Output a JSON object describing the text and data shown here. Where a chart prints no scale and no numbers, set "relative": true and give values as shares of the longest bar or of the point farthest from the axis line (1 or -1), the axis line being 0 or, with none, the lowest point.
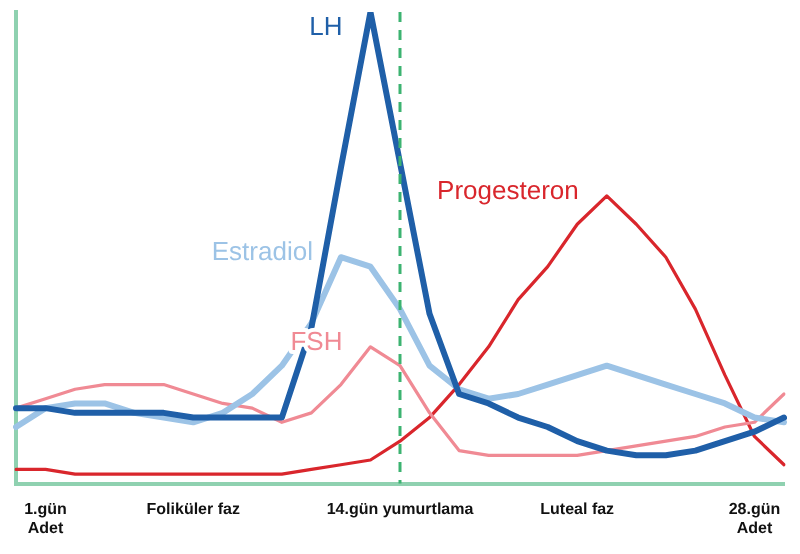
{
  "chart_data": {
    "type": "line",
    "relative": true,
    "grid": false,
    "legend": false,
    "marker": "none",
    "line_style": "solid",
    "categories": [
      null,
      "1.gün\nAdet",
      null,
      null,
      null,
      null,
      "Foliküler faz",
      null,
      null,
      null,
      null,
      null,
      null,
      "14.gün yumurtlama",
      null,
      null,
      null,
      null,
      null,
      "Luteal faz",
      null,
      null,
      null,
      null,
      null,
      "28.gün\nAdet",
      null
    ],
    "series": [
      {
        "name": "LH",
        "color": "#1f5fa8",
        "values": [
          0.16,
          0.16,
          0.15,
          0.15,
          0.15,
          0.15,
          0.14,
          0.14,
          0.14,
          0.14,
          0.33,
          0.67,
          1,
          0.68,
          0.36,
          0.19,
          0.17,
          0.14,
          0.12,
          0.09,
          0.07,
          0.06,
          0.06,
          0.07,
          0.09,
          0.11,
          0.14
        ]
      },
      {
        "name": "Estradiol",
        "color": "#9cc3e6",
        "values": [
          0.12,
          0.16,
          0.17,
          0.17,
          0.15,
          0.14,
          0.13,
          0.15,
          0.19,
          0.25,
          0.34,
          0.48,
          0.46,
          0.37,
          0.25,
          0.2,
          0.18,
          0.19,
          0.21,
          0.23,
          0.25,
          0.23,
          0.21,
          0.19,
          0.17,
          0.14,
          0.13
        ]
      },
      {
        "name": "FSH",
        "color": "#f08a94",
        "values": [
          0.16,
          0.18,
          0.2,
          0.21,
          0.21,
          0.21,
          0.19,
          0.17,
          0.16,
          0.13,
          0.15,
          0.21,
          0.29,
          0.25,
          0.15,
          0.07,
          0.06,
          0.06,
          0.06,
          0.06,
          0.07,
          0.08,
          0.09,
          0.1,
          0.12,
          0.13,
          0.19
        ]
      },
      {
        "name": "Progesteron",
        "color": "#d9262c",
        "values": [
          0.03,
          0.03,
          0.02,
          0.02,
          0.02,
          0.02,
          0.02,
          0.02,
          0.02,
          0.02,
          0.03,
          0.04,
          0.05,
          0.09,
          0.14,
          0.21,
          0.29,
          0.39,
          0.46,
          0.55,
          0.61,
          0.55,
          0.48,
          0.37,
          0.23,
          0.1,
          0.04
        ]
      }
    ],
    "ref_lines": [
      {
        "axis": "x",
        "value": "14.gün yumurtlama",
        "color": "#3cb371",
        "line_style": "dashed"
      }
    ]
  }
}
